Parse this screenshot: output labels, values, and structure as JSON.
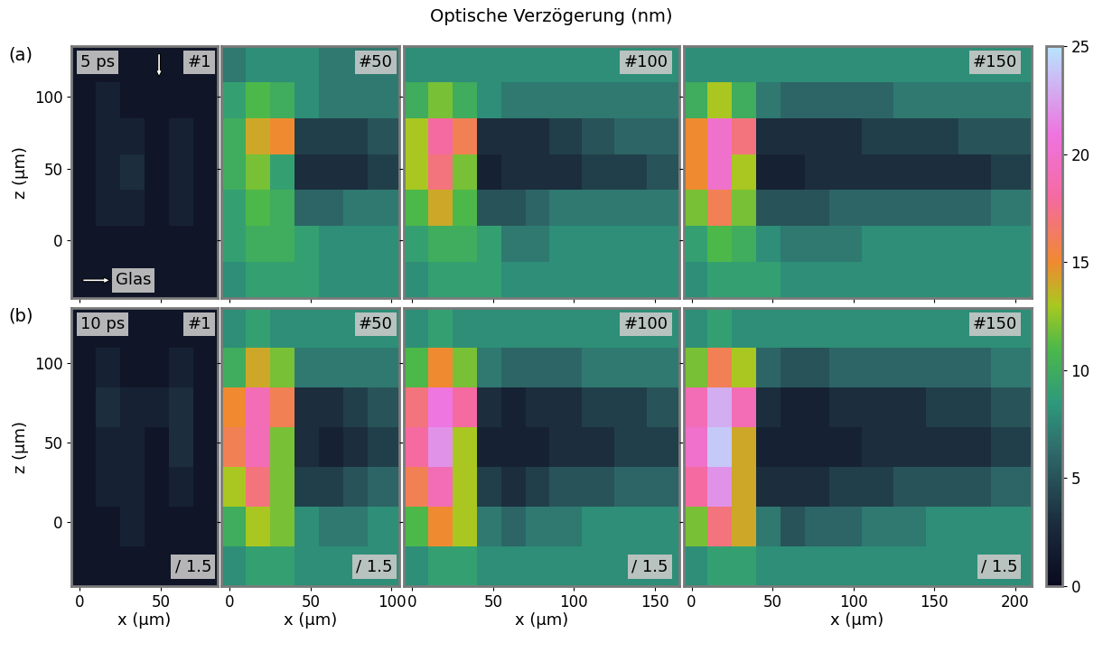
{
  "title": "Optische Verzögerung (nm)",
  "colorbar": {
    "lim": [
      0,
      25
    ],
    "ticks": [
      0,
      5,
      10,
      15,
      20,
      25
    ]
  },
  "chart_data": [
    {
      "type": "heatmap",
      "row_label": "(a)",
      "time": "5 ps",
      "label": "#1",
      "material": "Glas",
      "ylabel": "z (µm)",
      "tick_labels": "y",
      "xlim": [
        -5,
        85
      ],
      "ylim": [
        -40,
        135
      ],
      "xticks": [
        0,
        50
      ],
      "yticks": [
        0,
        50,
        100
      ],
      "x_edges": [
        -5,
        10,
        25,
        40,
        55,
        70,
        85
      ],
      "z_edges": [
        -40,
        -15,
        10,
        35,
        60,
        85,
        110,
        135
      ],
      "cells": [
        [
          1,
          1,
          1,
          1,
          1,
          1
        ],
        [
          1,
          1,
          1,
          1,
          1,
          1
        ],
        [
          1,
          2,
          2,
          1,
          2,
          1
        ],
        [
          1,
          2,
          3,
          1,
          2,
          1
        ],
        [
          1,
          2,
          2,
          1,
          2,
          1
        ],
        [
          1,
          2,
          1,
          1,
          1,
          1
        ],
        [
          1,
          1,
          1,
          1,
          1,
          1
        ]
      ]
    },
    {
      "type": "heatmap",
      "label": "#50",
      "tick_labels": false,
      "xlim": [
        -5,
        105
      ],
      "ylim": [
        -40,
        135
      ],
      "xticks": [
        0,
        50,
        100
      ],
      "yticks": [
        0,
        50,
        100
      ],
      "x_edges": [
        -5,
        10,
        25,
        40,
        55,
        70,
        85,
        105
      ],
      "z_edges": [
        -40,
        -15,
        10,
        35,
        60,
        85,
        110,
        135
      ],
      "cells": [
        [
          8,
          9,
          9,
          9,
          8,
          8,
          8
        ],
        [
          9,
          10,
          10,
          9,
          8,
          8,
          8
        ],
        [
          9,
          11,
          10,
          6,
          6,
          7,
          7
        ],
        [
          10,
          12,
          9,
          3,
          3,
          3,
          4
        ],
        [
          10,
          14,
          15,
          4,
          4,
          4,
          5
        ],
        [
          9,
          11,
          10,
          8,
          7,
          7,
          7
        ],
        [
          7,
          8,
          8,
          8,
          7,
          7,
          7
        ]
      ]
    },
    {
      "type": "heatmap",
      "label": "#100",
      "tick_labels": false,
      "xlim": [
        -5,
        165
      ],
      "ylim": [
        -40,
        135
      ],
      "xticks": [
        0,
        50,
        100,
        150
      ],
      "yticks": [
        0,
        50,
        100
      ],
      "x_edges": [
        -5,
        10,
        25,
        40,
        55,
        70,
        85,
        105,
        125,
        145,
        165
      ],
      "z_edges": [
        -40,
        -15,
        10,
        35,
        60,
        85,
        110,
        135
      ],
      "cells": [
        [
          8,
          9,
          9,
          9,
          8,
          8,
          8,
          8,
          8,
          8
        ],
        [
          9,
          10,
          10,
          9,
          7,
          7,
          8,
          8,
          8,
          8
        ],
        [
          11,
          14,
          11,
          5,
          5,
          6,
          7,
          7,
          7,
          7
        ],
        [
          13,
          17,
          12,
          2,
          3,
          3,
          3,
          4,
          4,
          5
        ],
        [
          13,
          18,
          16,
          3,
          3,
          3,
          4,
          5,
          6,
          6
        ],
        [
          10,
          12,
          10,
          8,
          7,
          7,
          7,
          7,
          7,
          7
        ],
        [
          8,
          8,
          8,
          8,
          8,
          8,
          8,
          8,
          8,
          8
        ]
      ]
    },
    {
      "type": "heatmap",
      "label": "#150",
      "tick_labels": false,
      "xlim": [
        -5,
        210
      ],
      "ylim": [
        -40,
        135
      ],
      "xticks": [
        0,
        50,
        100,
        150,
        200
      ],
      "yticks": [
        0,
        50,
        100
      ],
      "x_edges": [
        -5,
        10,
        25,
        40,
        55,
        70,
        85,
        105,
        125,
        145,
        165,
        185,
        210
      ],
      "z_edges": [
        -40,
        -15,
        10,
        35,
        60,
        85,
        110,
        135
      ],
      "cells": [
        [
          8,
          9,
          9,
          9,
          8,
          8,
          8,
          8,
          8,
          8,
          8,
          8
        ],
        [
          9,
          11,
          10,
          8,
          7,
          7,
          7,
          8,
          8,
          8,
          8,
          8
        ],
        [
          12,
          16,
          12,
          5,
          5,
          5,
          6,
          6,
          6,
          6,
          6,
          7
        ],
        [
          15,
          20,
          13,
          2,
          2,
          3,
          3,
          3,
          3,
          3,
          3,
          4
        ],
        [
          15,
          20,
          17,
          3,
          3,
          3,
          3,
          4,
          4,
          4,
          5,
          5
        ],
        [
          10,
          13,
          10,
          7,
          6,
          6,
          6,
          6,
          7,
          7,
          7,
          7
        ],
        [
          8,
          8,
          8,
          8,
          8,
          8,
          8,
          8,
          8,
          8,
          8,
          8
        ]
      ]
    },
    {
      "type": "heatmap",
      "row_label": "(b)",
      "time": "10 ps",
      "label": "#1",
      "scale_note": "/ 1.5",
      "xlabel": "x (µm)",
      "ylabel": "z (µm)",
      "tick_labels": true,
      "xlim": [
        -5,
        85
      ],
      "ylim": [
        -40,
        135
      ],
      "xticks": [
        0,
        50
      ],
      "yticks": [
        0,
        50,
        100
      ],
      "x_edges": [
        -5,
        10,
        25,
        40,
        55,
        70,
        85
      ],
      "z_edges": [
        -40,
        -15,
        10,
        35,
        60,
        85,
        110,
        135
      ],
      "cells": [
        [
          1,
          1,
          1,
          1,
          1,
          1
        ],
        [
          1,
          1,
          2,
          1,
          1,
          1
        ],
        [
          1,
          2,
          2,
          1,
          2,
          1
        ],
        [
          1,
          2,
          2,
          1,
          3,
          1
        ],
        [
          1,
          3,
          2,
          2,
          3,
          1
        ],
        [
          1,
          2,
          1,
          1,
          2,
          1
        ],
        [
          1,
          1,
          1,
          1,
          1,
          1
        ]
      ]
    },
    {
      "type": "heatmap",
      "label": "#50",
      "scale_note": "/ 1.5",
      "xlabel": "x (µm)",
      "tick_labels": "x",
      "xlim": [
        -5,
        105
      ],
      "ylim": [
        -40,
        135
      ],
      "xticks": [
        0,
        50,
        100
      ],
      "yticks": [
        0,
        50,
        100
      ],
      "x_edges": [
        -5,
        10,
        25,
        40,
        55,
        70,
        85,
        105
      ],
      "z_edges": [
        -40,
        -15,
        10,
        35,
        60,
        85,
        110,
        135
      ],
      "cells": [
        [
          8,
          9,
          9,
          8,
          8,
          8,
          8
        ],
        [
          10,
          13,
          12,
          8,
          7,
          7,
          8
        ],
        [
          13,
          17,
          12,
          4,
          4,
          5,
          6
        ],
        [
          16,
          19,
          12,
          3,
          2,
          3,
          4
        ],
        [
          15,
          19,
          16,
          3,
          3,
          4,
          5
        ],
        [
          10,
          14,
          12,
          7,
          7,
          7,
          7
        ],
        [
          8,
          9,
          8,
          8,
          8,
          8,
          8
        ]
      ]
    },
    {
      "type": "heatmap",
      "label": "#100",
      "scale_note": "/ 1.5",
      "xlabel": "x (µm)",
      "tick_labels": "x",
      "xlim": [
        -5,
        165
      ],
      "ylim": [
        -40,
        135
      ],
      "xticks": [
        0,
        50,
        100,
        150
      ],
      "yticks": [
        0,
        50,
        100
      ],
      "x_edges": [
        -5,
        10,
        25,
        40,
        55,
        70,
        85,
        105,
        125,
        145,
        165
      ],
      "z_edges": [
        -40,
        -15,
        10,
        35,
        60,
        85,
        110,
        135
      ],
      "cells": [
        [
          8,
          9,
          9,
          8,
          8,
          8,
          8,
          8,
          8,
          8
        ],
        [
          11,
          15,
          13,
          7,
          6,
          7,
          7,
          8,
          8,
          8
        ],
        [
          16,
          19,
          13,
          4,
          3,
          4,
          5,
          5,
          6,
          6
        ],
        [
          18,
          22,
          13,
          2,
          2,
          2,
          3,
          3,
          4,
          4
        ],
        [
          17,
          21,
          18,
          3,
          2,
          3,
          3,
          4,
          4,
          5
        ],
        [
          11,
          15,
          12,
          7,
          6,
          6,
          6,
          7,
          7,
          7
        ],
        [
          8,
          9,
          8,
          8,
          8,
          8,
          8,
          8,
          8,
          8
        ]
      ]
    },
    {
      "type": "heatmap",
      "label": "#150",
      "scale_note": "/ 1.5",
      "xlabel": "x (µm)",
      "tick_labels": "x",
      "xlim": [
        -5,
        210
      ],
      "ylim": [
        -40,
        135
      ],
      "xticks": [
        0,
        50,
        100,
        150,
        200
      ],
      "yticks": [
        0,
        50,
        100
      ],
      "x_edges": [
        -5,
        10,
        25,
        40,
        55,
        70,
        85,
        105,
        125,
        145,
        165,
        185,
        210
      ],
      "z_edges": [
        -40,
        -15,
        10,
        35,
        60,
        85,
        110,
        135
      ],
      "cells": [
        [
          8,
          9,
          9,
          8,
          8,
          8,
          8,
          8,
          8,
          8,
          8,
          8
        ],
        [
          12,
          17,
          14,
          7,
          5,
          6,
          6,
          7,
          7,
          8,
          8,
          8
        ],
        [
          18,
          22,
          14,
          3,
          3,
          3,
          4,
          4,
          5,
          5,
          5,
          6
        ],
        [
          20,
          24,
          14,
          2,
          2,
          2,
          2,
          3,
          3,
          3,
          3,
          4
        ],
        [
          19,
          23,
          19,
          3,
          2,
          2,
          3,
          3,
          3,
          4,
          4,
          5
        ],
        [
          12,
          16,
          13,
          6,
          5,
          5,
          6,
          6,
          6,
          6,
          6,
          7
        ],
        [
          8,
          9,
          8,
          8,
          8,
          8,
          8,
          8,
          8,
          8,
          8,
          8
        ]
      ]
    }
  ]
}
